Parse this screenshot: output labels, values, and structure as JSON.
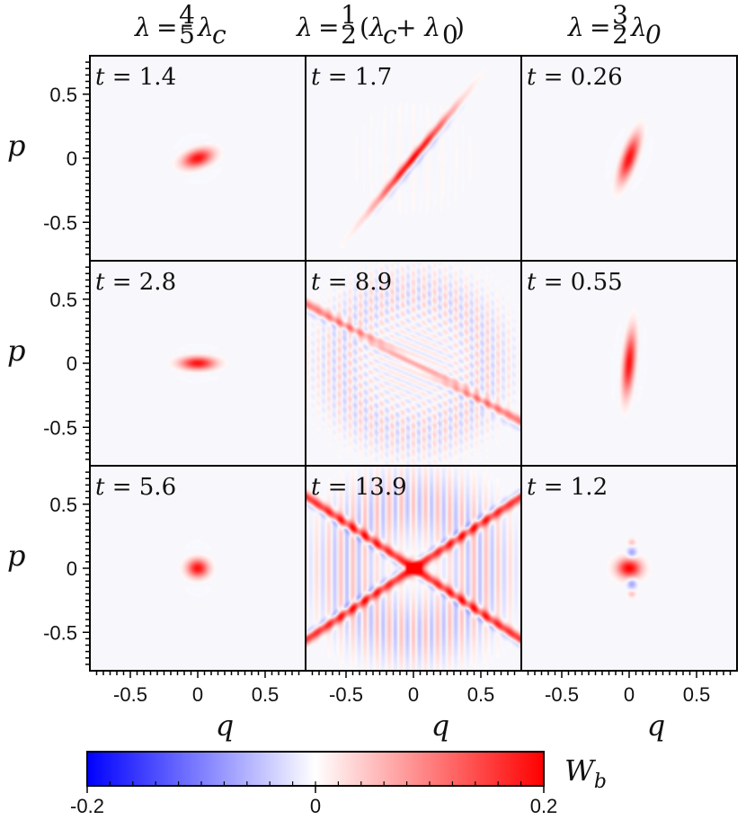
{
  "chart_data": {
    "type": "heatmap",
    "description_of_quantity": "W_b",
    "column_titles": [
      {
        "lhs": "λ",
        "eq": "=",
        "frac_num": "4",
        "frac_den": "5",
        "tail": "λ",
        "tail_sub": "c"
      },
      {
        "lhs": "λ",
        "eq": "=",
        "frac_num": "1",
        "frac_den": "2",
        "tail": "(λ",
        "tail_sub": "c",
        "tail2": " + λ",
        "tail2_sub": "0",
        "tail3": ")"
      },
      {
        "lhs": "λ",
        "eq": "=",
        "frac_num": "3",
        "frac_den": "2",
        "tail": "λ",
        "tail_sub": "0"
      }
    ],
    "panels": [
      {
        "row": 0,
        "col": 0,
        "t": "t = 1.4",
        "shape": "ellipse",
        "angle": 20,
        "sx": 0.08,
        "sy": 0.045,
        "peak": 0.2
      },
      {
        "row": 0,
        "col": 1,
        "t": "t = 1.7",
        "shape": "streak",
        "angle": 52,
        "sx": 0.32,
        "sy": 0.02,
        "peak": 0.2
      },
      {
        "row": 0,
        "col": 2,
        "t": "t = 0.26",
        "shape": "ellipse",
        "angle": 72,
        "sx": 0.13,
        "sy": 0.035,
        "peak": 0.2
      },
      {
        "row": 1,
        "col": 0,
        "t": "t = 2.8",
        "shape": "ellipse",
        "angle": 0,
        "sx": 0.09,
        "sy": 0.035,
        "peak": 0.2
      },
      {
        "row": 1,
        "col": 1,
        "t": "t = 8.9",
        "shape": "interference",
        "angle": -30,
        "sx": 0.8,
        "sy": 0.02,
        "peak": 0.12
      },
      {
        "row": 1,
        "col": 2,
        "t": "t = 0.55",
        "shape": "ellipse",
        "angle": 85,
        "sx": 0.17,
        "sy": 0.03,
        "peak": 0.2
      },
      {
        "row": 2,
        "col": 0,
        "t": "t = 5.6",
        "shape": "ellipse",
        "angle": 0,
        "sx": 0.055,
        "sy": 0.05,
        "peak": 0.2
      },
      {
        "row": 2,
        "col": 1,
        "t": "t = 13.9",
        "shape": "cross",
        "angle": 35,
        "sx": 0.8,
        "sy": 0.02,
        "peak": 0.2
      },
      {
        "row": 2,
        "col": 2,
        "t": "t = 1.2",
        "shape": "blob-lobes",
        "angle": 0,
        "sx": 0.06,
        "sy": 0.05,
        "peak": 0.2
      }
    ],
    "xlabel": "q",
    "ylabel": "p",
    "xlim": [
      -0.8,
      0.8
    ],
    "ylim": [
      -0.8,
      0.8
    ],
    "xticks": [
      "-0.5",
      "0",
      "0.5"
    ],
    "xtick_values": [
      -0.5,
      0,
      0.5
    ],
    "yticks": [
      "0.5",
      "0",
      "-0.5"
    ],
    "ytick_values": [
      0.5,
      0,
      -0.5
    ],
    "colorbar": {
      "label": "W",
      "label_sub": "b",
      "range": [
        -0.2,
        0.2
      ],
      "ticks": [
        "-0.2",
        "0",
        "0.2"
      ],
      "tick_values": [
        -0.2,
        0,
        0.2
      ],
      "colors": {
        "negative": "#0000ff",
        "zero": "#ffffff",
        "positive": "#ff0000"
      }
    },
    "background_color": "#f8f8fc"
  }
}
